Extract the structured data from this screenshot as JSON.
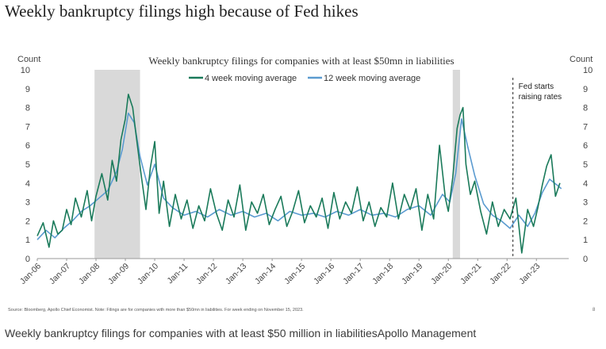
{
  "page": {
    "headline": "Weekly bankruptcy filings high because of Fed hikes",
    "source_note": "Source: Bloomberg, Apollo Chief Economist. Note: Filings are for companies with more than $50mn in liabilities. For week ending on November 15, 2023.",
    "page_number": "8",
    "caption": "Weekly bankruptcy filings for companies with at least $50 million in liabilitiesApollo Management"
  },
  "chart_data": {
    "type": "line",
    "title": "Weekly bankruptcy filings for companies with at least $50mn in liabilities",
    "ylabel_left": "Count",
    "ylabel_right": "Count",
    "ylim": [
      0,
      10
    ],
    "yticks": [
      "0",
      "1",
      "2",
      "3",
      "4",
      "5",
      "6",
      "7",
      "8",
      "9",
      "10"
    ],
    "xlim": [
      2006.0,
      2024.1
    ],
    "xticks": [
      {
        "label": "Jan-06",
        "x": 2006.0
      },
      {
        "label": "Jan-07",
        "x": 2007.0
      },
      {
        "label": "Jan-08",
        "x": 2008.0
      },
      {
        "label": "Jan-09",
        "x": 2009.0
      },
      {
        "label": "Jan-10",
        "x": 2010.0
      },
      {
        "label": "Jan-11",
        "x": 2011.0
      },
      {
        "label": "Jan-12",
        "x": 2012.0
      },
      {
        "label": "Jan-13",
        "x": 2013.0
      },
      {
        "label": "Jan-14",
        "x": 2014.0
      },
      {
        "label": "Jan-15",
        "x": 2015.0
      },
      {
        "label": "Jan-16",
        "x": 2016.0
      },
      {
        "label": "Jan-17",
        "x": 2017.0
      },
      {
        "label": "Jan-18",
        "x": 2018.0
      },
      {
        "label": "Jan-19",
        "x": 2019.0
      },
      {
        "label": "Jan-20",
        "x": 2020.0
      },
      {
        "label": "Jan-21",
        "x": 2021.0
      },
      {
        "label": "Jan-22",
        "x": 2022.0
      },
      {
        "label": "Jan-23",
        "x": 2023.0
      }
    ],
    "recessions": [
      {
        "start": 2007.95,
        "end": 2009.5
      },
      {
        "start": 2020.15,
        "end": 2020.4
      }
    ],
    "annotation": {
      "text_lines": [
        "Fed starts",
        "raising rates"
      ],
      "x": 2022.2
    },
    "series": [
      {
        "name": "4 week moving average",
        "color": "#1a7a5a",
        "x": [
          2006.0,
          2006.2,
          2006.4,
          2006.55,
          2006.7,
          2006.85,
          2007.0,
          2007.15,
          2007.3,
          2007.5,
          2007.7,
          2007.85,
          2008.0,
          2008.2,
          2008.4,
          2008.55,
          2008.7,
          2008.85,
          2009.0,
          2009.1,
          2009.25,
          2009.4,
          2009.55,
          2009.7,
          2009.85,
          2010.0,
          2010.15,
          2010.3,
          2010.5,
          2010.7,
          2010.9,
          2011.1,
          2011.3,
          2011.5,
          2011.7,
          2011.9,
          2012.1,
          2012.3,
          2012.5,
          2012.7,
          2012.9,
          2013.1,
          2013.3,
          2013.5,
          2013.7,
          2013.9,
          2014.1,
          2014.3,
          2014.5,
          2014.7,
          2014.9,
          2015.1,
          2015.3,
          2015.5,
          2015.7,
          2015.9,
          2016.1,
          2016.3,
          2016.5,
          2016.7,
          2016.9,
          2017.1,
          2017.3,
          2017.5,
          2017.7,
          2017.9,
          2018.1,
          2018.3,
          2018.5,
          2018.7,
          2018.9,
          2019.1,
          2019.3,
          2019.5,
          2019.7,
          2019.9,
          2020.0,
          2020.15,
          2020.3,
          2020.4,
          2020.5,
          2020.6,
          2020.75,
          2020.9,
          2021.1,
          2021.3,
          2021.5,
          2021.7,
          2021.9,
          2022.1,
          2022.3,
          2022.5,
          2022.7,
          2022.9,
          2023.05,
          2023.2,
          2023.35,
          2023.5,
          2023.65,
          2023.8
        ],
        "values": [
          1.2,
          1.9,
          0.6,
          2.0,
          1.3,
          1.5,
          2.6,
          1.8,
          3.2,
          2.2,
          3.6,
          2.0,
          3.3,
          4.5,
          3.1,
          5.2,
          4.1,
          6.3,
          7.4,
          8.7,
          8.0,
          6.1,
          4.3,
          2.6,
          4.8,
          6.2,
          2.4,
          4.1,
          1.7,
          3.4,
          2.1,
          3.1,
          1.6,
          2.8,
          2.0,
          3.7,
          2.4,
          1.5,
          3.1,
          2.2,
          3.9,
          1.5,
          3.0,
          2.4,
          3.4,
          1.8,
          2.6,
          3.3,
          1.7,
          2.5,
          3.6,
          1.9,
          2.8,
          2.2,
          3.2,
          1.6,
          3.5,
          2.1,
          3.0,
          2.4,
          3.8,
          2.0,
          3.0,
          1.7,
          2.7,
          2.2,
          4.0,
          2.1,
          3.4,
          2.6,
          3.7,
          1.5,
          3.4,
          2.1,
          6.0,
          3.2,
          2.5,
          4.3,
          6.9,
          7.6,
          8.0,
          5.0,
          3.4,
          4.1,
          2.5,
          1.3,
          3.0,
          1.7,
          2.6,
          2.1,
          3.2,
          0.3,
          2.6,
          1.7,
          2.7,
          3.9,
          4.9,
          5.5,
          3.3,
          4.0
        ]
      },
      {
        "name": "12 week moving average",
        "color": "#5b9bd0",
        "x": [
          2006.0,
          2006.3,
          2006.6,
          2006.9,
          2007.2,
          2007.5,
          2007.8,
          2008.1,
          2008.4,
          2008.7,
          2008.9,
          2009.1,
          2009.3,
          2009.5,
          2009.75,
          2010.0,
          2010.3,
          2010.6,
          2011.0,
          2011.4,
          2011.8,
          2012.2,
          2012.6,
          2013.0,
          2013.4,
          2013.8,
          2014.2,
          2014.6,
          2015.0,
          2015.4,
          2015.8,
          2016.2,
          2016.6,
          2017.0,
          2017.4,
          2017.8,
          2018.2,
          2018.6,
          2019.0,
          2019.4,
          2019.8,
          2020.05,
          2020.25,
          2020.45,
          2020.65,
          2020.9,
          2021.2,
          2021.5,
          2021.8,
          2022.1,
          2022.4,
          2022.7,
          2022.95,
          2023.2,
          2023.45,
          2023.7,
          2023.85
        ],
        "values": [
          1.0,
          1.5,
          1.1,
          1.6,
          2.0,
          2.5,
          2.8,
          3.2,
          3.6,
          4.6,
          5.8,
          7.7,
          7.2,
          5.4,
          3.9,
          5.0,
          3.2,
          2.7,
          2.3,
          2.5,
          2.2,
          2.6,
          2.3,
          2.5,
          2.2,
          2.4,
          2.0,
          2.5,
          2.3,
          2.4,
          2.2,
          2.5,
          2.3,
          2.6,
          2.3,
          2.4,
          2.2,
          2.6,
          2.8,
          2.3,
          3.4,
          3.0,
          4.5,
          7.4,
          6.0,
          4.4,
          2.9,
          2.3,
          2.0,
          1.6,
          2.3,
          1.7,
          2.4,
          3.5,
          4.2,
          3.9,
          3.7
        ]
      }
    ]
  }
}
